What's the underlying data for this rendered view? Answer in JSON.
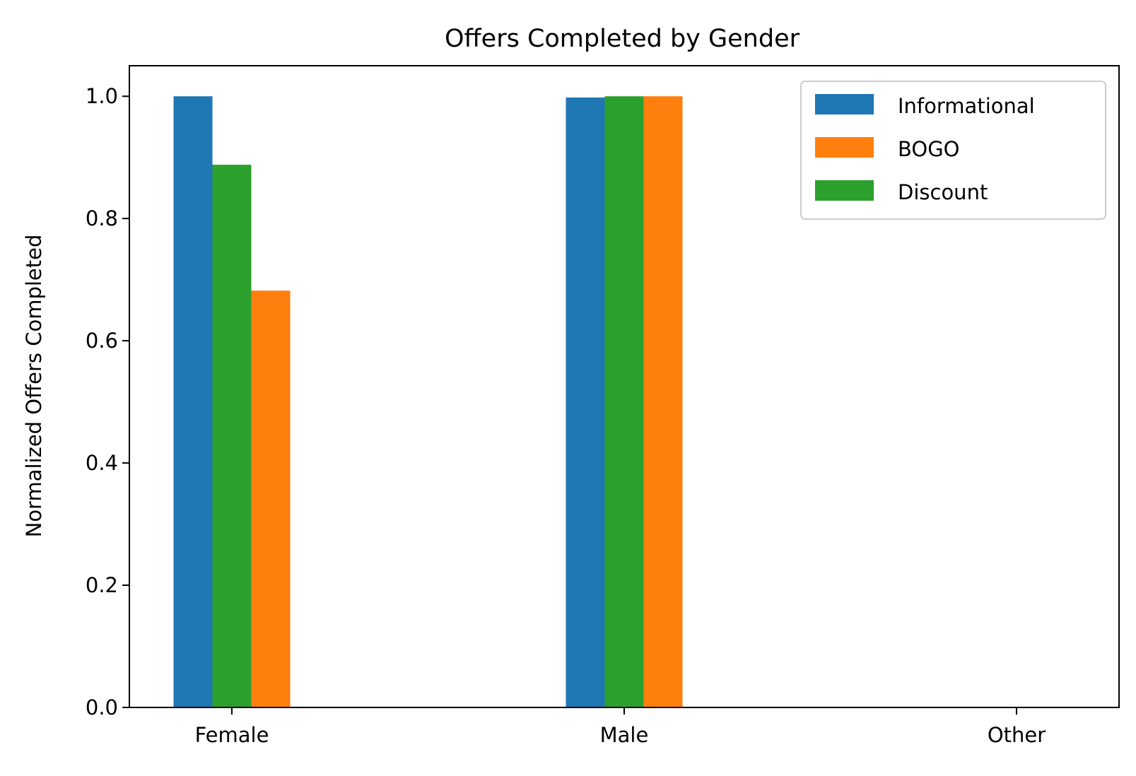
{
  "chart_data": {
    "type": "bar",
    "title": "Offers Completed by Gender",
    "xlabel": "",
    "ylabel": "Normalized Offers Completed",
    "categories": [
      "Female",
      "Male",
      "Other"
    ],
    "series": [
      {
        "name": "Informational",
        "color": "#1f77b4",
        "values": [
          1.0,
          0.998,
          0.0
        ]
      },
      {
        "name": "Discount",
        "color": "#2ca02c",
        "values": [
          0.888,
          1.0,
          0.0
        ]
      },
      {
        "name": "BOGO",
        "color": "#ff7f0e",
        "values": [
          0.682,
          1.0,
          0.0
        ]
      }
    ],
    "legend": {
      "position": "top-right",
      "order": [
        "Informational",
        "BOGO",
        "Discount"
      ]
    },
    "ylim": [
      0,
      1.05
    ],
    "yticks": [
      0.0,
      0.2,
      0.4,
      0.6,
      0.8,
      1.0
    ],
    "ytick_labels": [
      "0.0",
      "0.2",
      "0.4",
      "0.6",
      "0.8",
      "1.0"
    ],
    "grid": false
  }
}
